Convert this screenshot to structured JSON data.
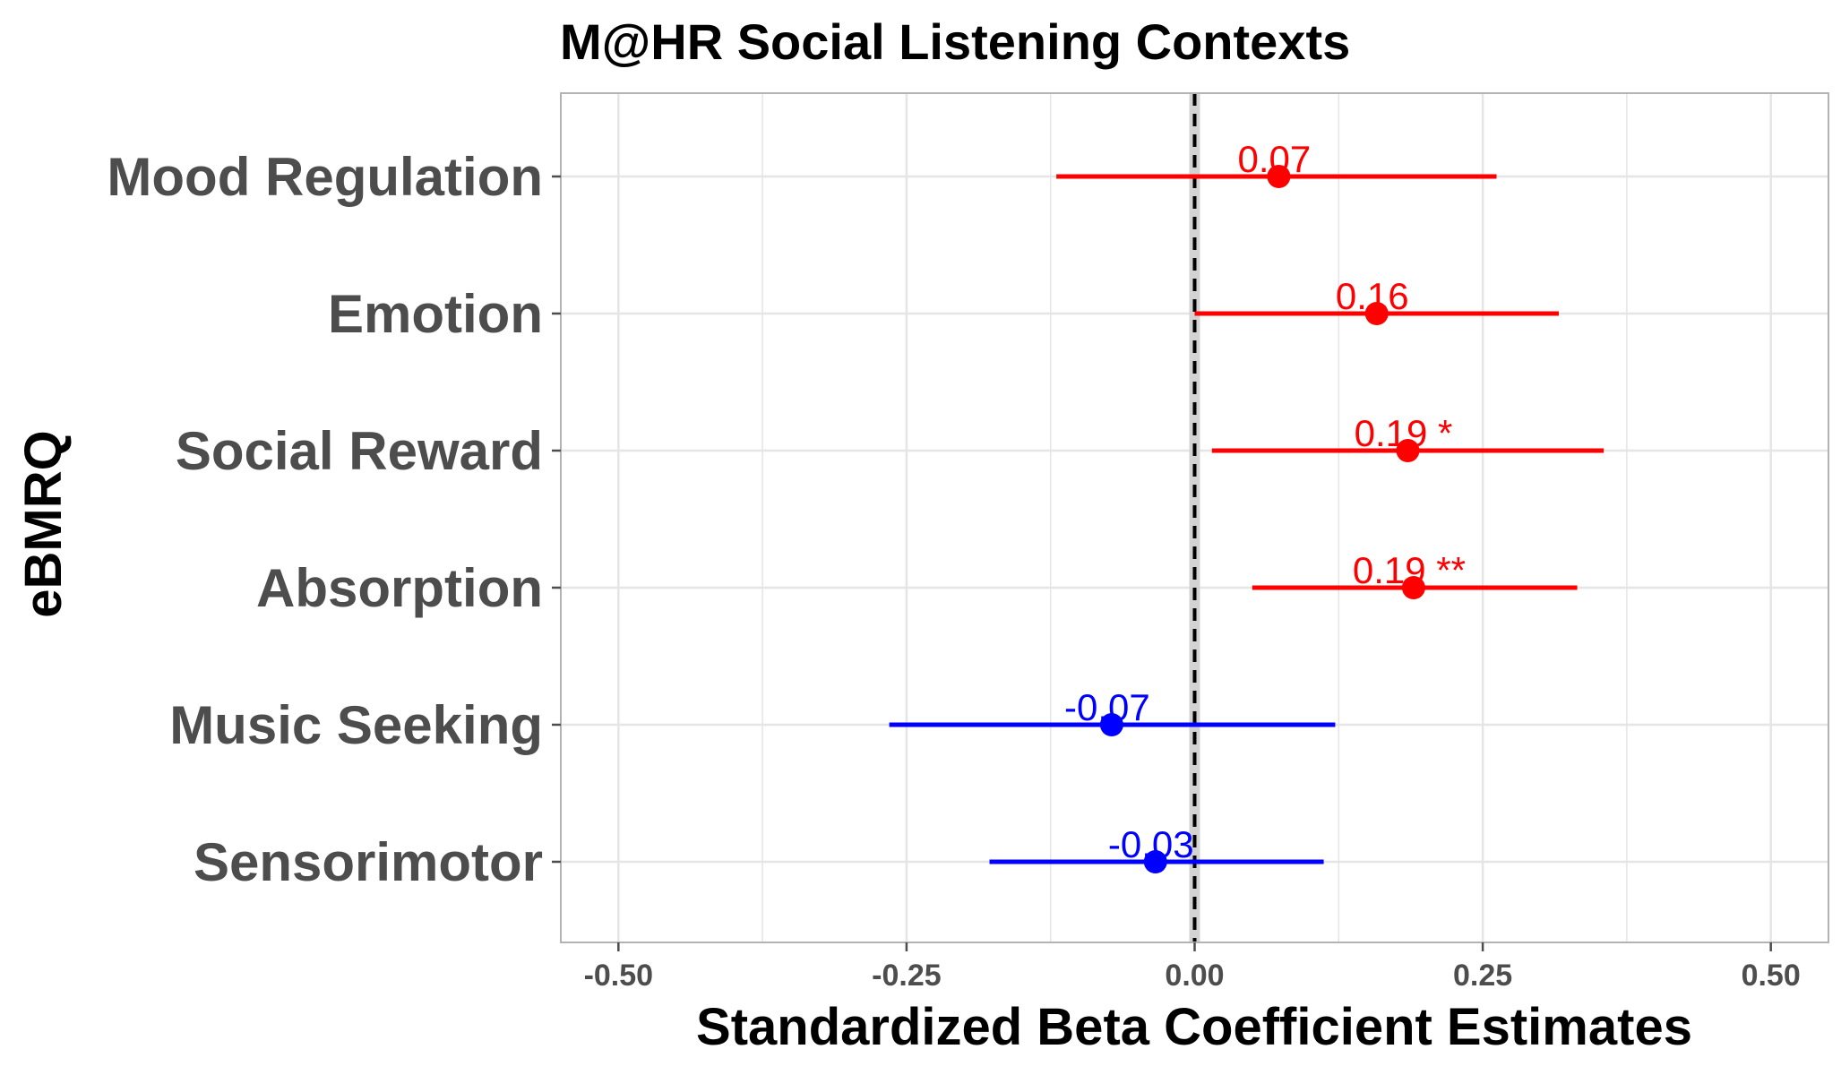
{
  "chart_data": {
    "type": "scatter",
    "title": "M@HR Social Listening Contexts",
    "xlabel": "Standardized Beta Coefficient Estimates",
    "ylabel": "eBMRQ",
    "xlim": [
      -0.55,
      0.55
    ],
    "x_ticks": [
      -0.5,
      -0.25,
      0.0,
      0.25,
      0.5
    ],
    "x_tick_labels": [
      "-0.50",
      "-0.25",
      "0.00",
      "0.25",
      "0.50"
    ],
    "grid": true,
    "reference_line": 0,
    "colors": {
      "positive": "#ff0000",
      "negative": "#0000ff",
      "grid": "#e5e5e5",
      "border": "#b3b3b3"
    },
    "series": [
      {
        "category": "Mood Regulation",
        "estimate": 0.073,
        "ci_low": -0.12,
        "ci_high": 0.262,
        "label": "0.07",
        "sign": "positive"
      },
      {
        "category": "Emotion",
        "estimate": 0.158,
        "ci_low": 0.0,
        "ci_high": 0.316,
        "label": "0.16",
        "sign": "positive"
      },
      {
        "category": "Social Reward",
        "estimate": 0.185,
        "ci_low": 0.015,
        "ci_high": 0.355,
        "label": "0.19 *",
        "sign": "positive"
      },
      {
        "category": "Absorption",
        "estimate": 0.19,
        "ci_low": 0.05,
        "ci_high": 0.332,
        "label": "0.19 **",
        "sign": "positive"
      },
      {
        "category": "Music Seeking",
        "estimate": -0.072,
        "ci_low": -0.265,
        "ci_high": 0.122,
        "label": "-0.07",
        "sign": "negative"
      },
      {
        "category": "Sensorimotor",
        "estimate": -0.034,
        "ci_low": -0.178,
        "ci_high": 0.112,
        "label": "-0.03",
        "sign": "negative"
      }
    ]
  }
}
